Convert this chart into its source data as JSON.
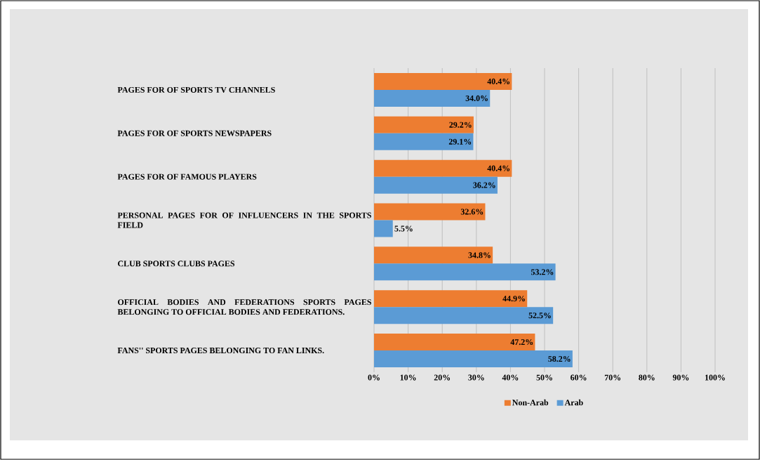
{
  "chart_data": {
    "type": "bar",
    "orientation": "horizontal",
    "categories": [
      "PAGES FOR OF SPORTS TV CHANNELS",
      "PAGES FOR OF SPORTS NEWSPAPERS",
      "PAGES FOR OF FAMOUS PLAYERS",
      "PERSONAL PAGES FOR OF INFLUENCERS IN THE SPORTS FIELD",
      "CLUB SPORTS CLUBS PAGES",
      "OFFICIAL BODIES AND FEDERATIONS SPORTS PAGES BELONGING TO OFFICIAL BODIES AND FEDERATIONS.",
      "FANS'' SPORTS PAGES BELONGING TO FAN LINKS."
    ],
    "series": [
      {
        "name": "Non-Arab",
        "color": "#ed7d31",
        "values": [
          40.4,
          29.2,
          40.4,
          32.6,
          34.8,
          44.9,
          47.2
        ],
        "value_labels": [
          "40.4%",
          "29.2%",
          "40.4%",
          "32.6%",
          "34.8%",
          "44.9%",
          "47.2%"
        ]
      },
      {
        "name": "Arab",
        "color": "#5b9bd5",
        "values": [
          34.0,
          29.1,
          36.2,
          5.5,
          53.2,
          52.5,
          58.2
        ],
        "value_labels": [
          "34.0%",
          "29.1%",
          "36.2%",
          "5.5%",
          "53.2%",
          "52.5%",
          "58.2%"
        ]
      }
    ],
    "xlim": [
      0,
      100
    ],
    "xticks": [
      {
        "value": 0,
        "label": "0%"
      },
      {
        "value": 10,
        "label": "10%"
      },
      {
        "value": 20,
        "label": "20%"
      },
      {
        "value": 30,
        "label": "30%"
      },
      {
        "value": 40,
        "label": "40%"
      },
      {
        "value": 50,
        "label": "50%"
      },
      {
        "value": 60,
        "label": "60%"
      },
      {
        "value": 70,
        "label": "70%"
      },
      {
        "value": 80,
        "label": "80%"
      },
      {
        "value": 90,
        "label": "90%"
      },
      {
        "value": 100,
        "label": "100%"
      }
    ],
    "grid": "x",
    "legend": "bottom"
  }
}
